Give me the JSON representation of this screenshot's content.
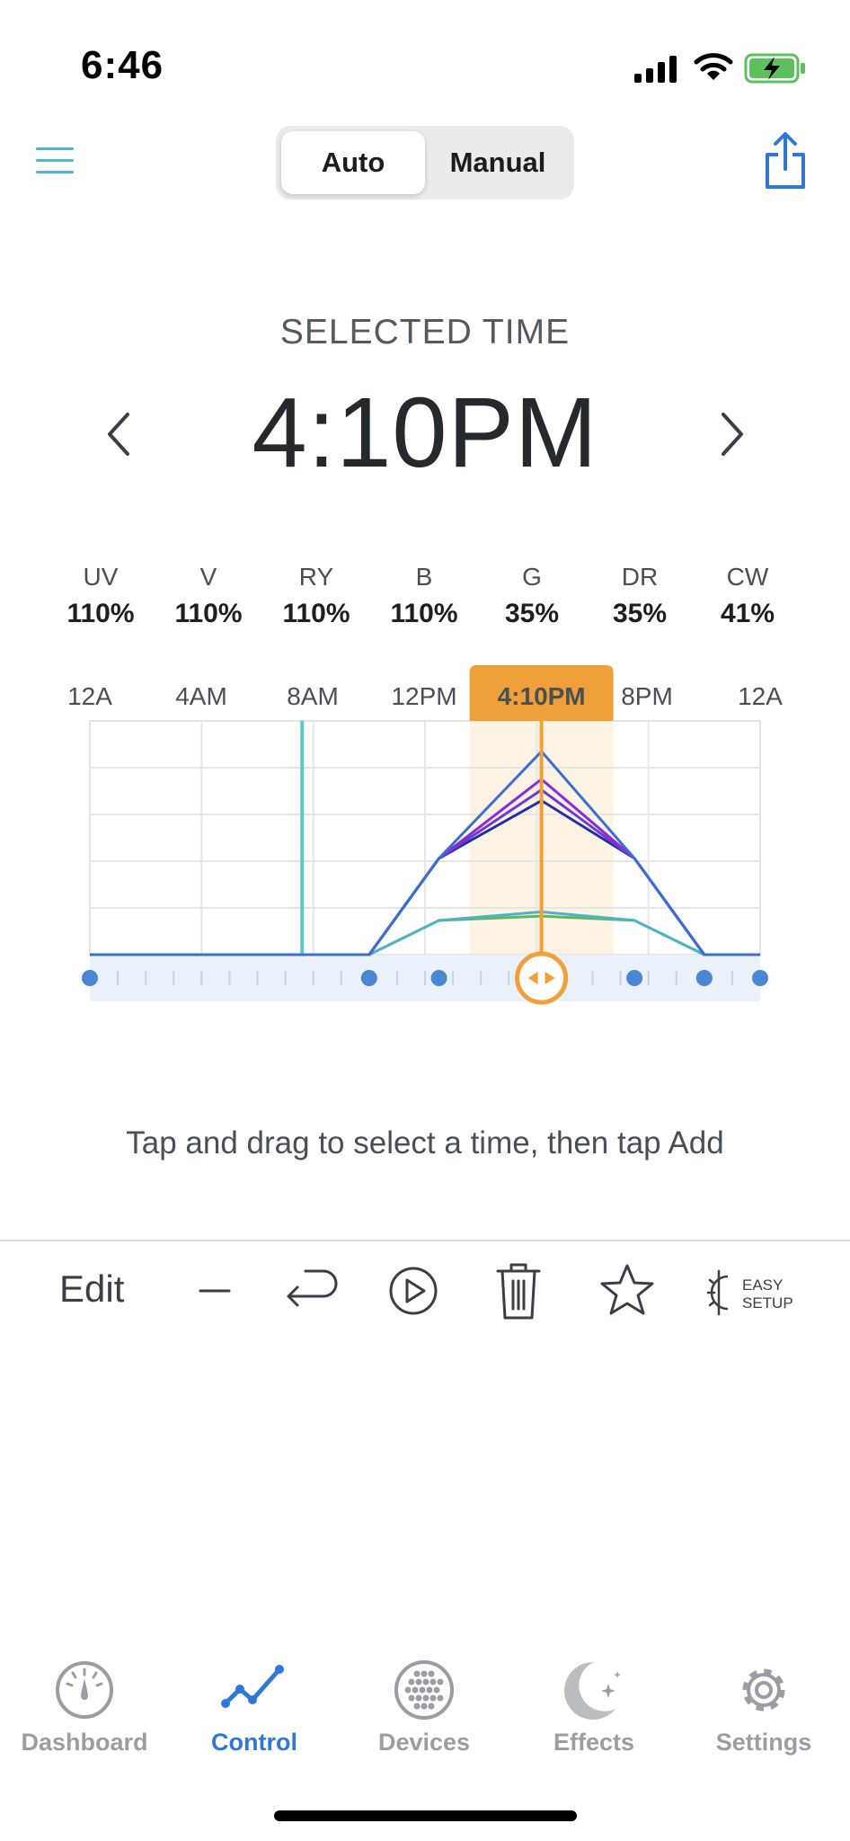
{
  "status_bar": {
    "time": "6:46"
  },
  "header": {
    "mode_tabs": [
      {
        "label": "Auto",
        "selected": true
      },
      {
        "label": "Manual",
        "selected": false
      }
    ]
  },
  "selected": {
    "label": "SELECTED TIME",
    "time": "4:10PM"
  },
  "channels": [
    {
      "name": "UV",
      "value": "110%"
    },
    {
      "name": "V",
      "value": "110%"
    },
    {
      "name": "RY",
      "value": "110%"
    },
    {
      "name": "B",
      "value": "110%"
    },
    {
      "name": "G",
      "value": "35%"
    },
    {
      "name": "DR",
      "value": "35%"
    },
    {
      "name": "CW",
      "value": "41%"
    }
  ],
  "chart_data": {
    "type": "line",
    "x_tick_labels": [
      "12A",
      "4AM",
      "8AM",
      "12PM",
      "4:10PM",
      "8PM",
      "12A"
    ],
    "x_range_hours": [
      0,
      24
    ],
    "x": [
      0,
      10,
      12.5,
      16.17,
      19.5,
      22,
      24
    ],
    "selected_label": "4:10PM",
    "selected_hour": 16.17,
    "current_hour": 7.6,
    "keyframe_hours": [
      0,
      10,
      12.5,
      19.5,
      22,
      24
    ],
    "series": [
      {
        "color": "#3a6fd0",
        "values": [
          0,
          0,
          0.45,
          0.95,
          0.45,
          0,
          0
        ]
      },
      {
        "color": "#8a2bd6",
        "values": [
          0,
          0,
          0.45,
          0.82,
          0.45,
          0,
          0
        ]
      },
      {
        "color": "#6f3ad0",
        "values": [
          0,
          0,
          0.45,
          0.77,
          0.45,
          0,
          0
        ]
      },
      {
        "color": "#2030a8",
        "values": [
          0,
          0,
          0.45,
          0.72,
          0.45,
          0,
          0
        ]
      },
      {
        "color": "#4fb3c8",
        "values": [
          0,
          0,
          0.16,
          0.2,
          0.16,
          0,
          0
        ]
      },
      {
        "color": "#5cb85c",
        "values": [
          0,
          0,
          0.16,
          0.18,
          0.16,
          0,
          0
        ]
      }
    ],
    "accent_color": "#f0a03a",
    "current_line_color": "#5ec9c9",
    "grid": true
  },
  "hint": "Tap and drag to select a time, then tap Add",
  "toolbar": {
    "edit_label": "Edit",
    "easy_setup_label_1": "EASY",
    "easy_setup_label_2": "SETUP"
  },
  "tabs": [
    {
      "label": "Dashboard",
      "icon": "gauge-icon",
      "active": false
    },
    {
      "label": "Control",
      "icon": "line-chart-icon",
      "active": true
    },
    {
      "label": "Devices",
      "icon": "dots-disc-icon",
      "active": false
    },
    {
      "label": "Effects",
      "icon": "moon-stars-icon",
      "active": false
    },
    {
      "label": "Settings",
      "icon": "gear-icon",
      "active": false
    }
  ],
  "colors": {
    "primary": "#2f78d6",
    "accent": "#f0a03a",
    "teal": "#4fb8c4"
  }
}
